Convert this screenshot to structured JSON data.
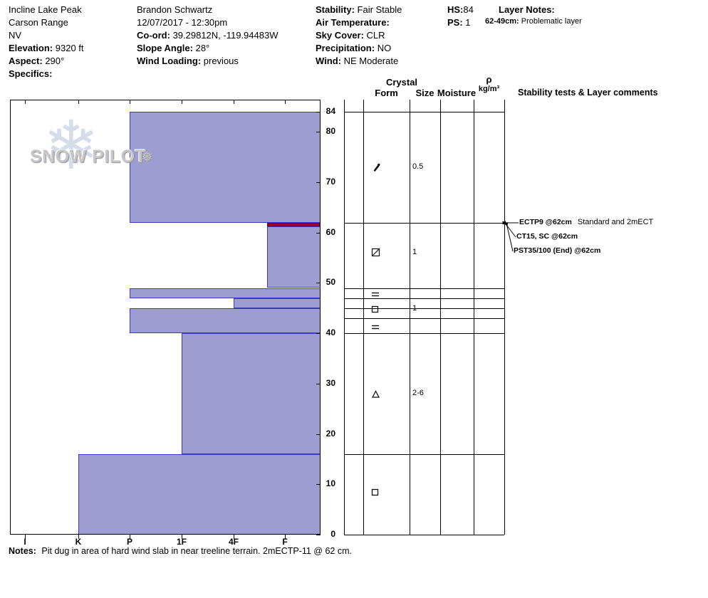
{
  "header": {
    "site": {
      "name": "Incline Lake Peak",
      "range": "Carson Range",
      "state": "NV",
      "elevation_label": "Elevation:",
      "elevation_value": "9320 ft",
      "aspect_label": "Aspect:",
      "aspect_value": "290°",
      "specifics_label": "Specifics:",
      "specifics_value": ""
    },
    "observer": {
      "name": "Brandon Schwartz",
      "datetime": "12/07/2017 - 12:30pm",
      "coord_label": "Co-ord:",
      "coord_value": "39.29812N, -119.94483W",
      "slope_angle_label": "Slope Angle:",
      "slope_angle_value": "28°",
      "wind_loading_label": "Wind Loading:",
      "wind_loading_value": "previous"
    },
    "conditions": {
      "stability_label": "Stability:",
      "stability_value": "Fair Stable",
      "air_temp_label": "Air Temperature:",
      "air_temp_value": "",
      "sky_cover_label": "Sky Cover:",
      "sky_cover_value": "CLR",
      "precipitation_label": "Precipitation:",
      "precipitation_value": "NO",
      "wind_label": "Wind:",
      "wind_value": "NE Moderate"
    },
    "summary": {
      "hs_label": "HS:",
      "hs_value": "84",
      "ps_label": "PS:",
      "ps_value": "1"
    },
    "layer_notes": {
      "title": "Layer Notes:",
      "entries": [
        {
          "range": "62-49cm:",
          "text": "Problematic layer"
        }
      ]
    }
  },
  "watermark": {
    "text": "SNOW PILOT",
    "snowflake": "❄",
    "small_snowflake": "❅"
  },
  "panel": {
    "crystal_header": "Crystal",
    "form_header": "Form",
    "size_header": "Size",
    "moisture_header": "Moisture",
    "density_symbol": "ρ",
    "density_units": "kg/m³",
    "comments_header": "Stability tests & Layer comments"
  },
  "chart_data": {
    "type": "snow-profile",
    "title": "Snow pit hardness profile",
    "depth_unit": "cm",
    "total_depth_cm": 84,
    "depth_ticks": [
      84,
      80,
      70,
      60,
      50,
      40,
      30,
      20,
      10,
      0
    ],
    "hardness_ticks": [
      "I",
      "K",
      "P",
      "1F",
      "4F",
      "F"
    ],
    "grid_row_depths": [
      84,
      62,
      49,
      47,
      45,
      43,
      40,
      16,
      0
    ],
    "layers": [
      {
        "top_cm": 84,
        "bottom_cm": 62,
        "hardness": "P",
        "type": "snow"
      },
      {
        "top_cm": 62,
        "bottom_cm": 61.2,
        "hardness": "F+",
        "type": "problem"
      },
      {
        "top_cm": 61.2,
        "bottom_cm": 49,
        "hardness": "F+",
        "type": "snow"
      },
      {
        "top_cm": 49,
        "bottom_cm": 47,
        "hardness": "P",
        "type": "snow"
      },
      {
        "top_cm": 47,
        "bottom_cm": 45,
        "hardness": "4F",
        "type": "snow"
      },
      {
        "top_cm": 45,
        "bottom_cm": 40,
        "hardness": "P",
        "type": "snow"
      },
      {
        "top_cm": 40,
        "bottom_cm": 16,
        "hardness": "1F",
        "type": "snow"
      },
      {
        "top_cm": 16,
        "bottom_cm": 0,
        "hardness": "K",
        "type": "snow"
      }
    ],
    "crystals": [
      {
        "depth_cm": 73,
        "form": "DF",
        "form_name": "decomposing-fragments",
        "size_mm": "0.5"
      },
      {
        "depth_cm": 56,
        "form": "FCxr",
        "form_name": "rounding-facets",
        "size_mm": "1"
      },
      {
        "depth_cm": 48,
        "form": "IF",
        "form_name": "ice-layer",
        "size_mm": ""
      },
      {
        "depth_cm": 44.8,
        "form": "FC",
        "form_name": "faceted-crystals",
        "size_mm": "1"
      },
      {
        "depth_cm": 41.5,
        "form": "IF",
        "form_name": "ice-layer",
        "size_mm": ""
      },
      {
        "depth_cm": 28,
        "form": "DH",
        "form_name": "depth-hoar",
        "size_mm": "2-6"
      },
      {
        "depth_cm": 8.5,
        "form": "FC",
        "form_name": "faceted-crystals",
        "size_mm": ""
      }
    ],
    "stability_tests": [
      {
        "label": "ECTP9 @62cm",
        "note": "Standard and 2mECT",
        "depth_cm": 62
      },
      {
        "label": "CT15, SC @62cm",
        "note": "",
        "depth_cm": 62
      },
      {
        "label": "PST35/100 (End) @62cm",
        "note": "",
        "depth_cm": 62
      }
    ],
    "colors": {
      "layer_fill": "#9d9dd2",
      "layer_border": "#3a3ac0",
      "problem_fill": "#990033",
      "problem_border": "#6e0026"
    }
  },
  "notes": {
    "label": "Notes:",
    "text": "Pit dug in area of hard wind slab in near treeline terrain. 2mECTP-11 @ 62 cm."
  }
}
